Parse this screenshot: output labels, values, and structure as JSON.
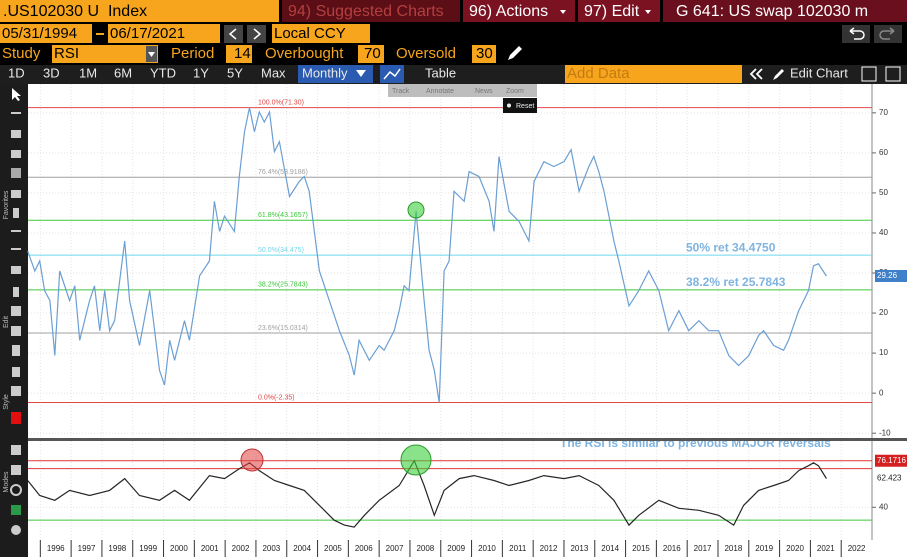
{
  "header": {
    "ticker": ".US102030 U  Index",
    "menu": [
      "94) Suggested Charts",
      "96) Actions",
      "97) Edit"
    ],
    "page": "G 641: US swap 102030 m"
  },
  "controls": {
    "start_date": "05/31/1994",
    "end_date": "06/17/2021",
    "currency": "Local CCY",
    "study_label": "Study",
    "study": "RSI",
    "period_label": "Period",
    "period": 14,
    "overbought_label": "Overbought",
    "overbought": 70,
    "oversold_label": "Oversold",
    "oversold": 30
  },
  "toolbar": {
    "ranges": [
      "1D",
      "3D",
      "1M",
      "6M",
      "YTD",
      "1Y",
      "5Y",
      "Max"
    ],
    "frequency": "Monthly",
    "table": "Table",
    "add_data": "Add Data",
    "edit_chart": "Edit Chart"
  },
  "chart_tools": [
    "Track",
    "Annotate",
    "News",
    "Zoom",
    "Reset"
  ],
  "sidebar": [
    "Favorites",
    "Edit",
    "Style",
    "Modes"
  ],
  "chart_data": [
    {
      "type": "line",
      "color": "#6b9fd3",
      "x": [
        1995.59,
        1995.82,
        1995.98,
        1996.14,
        1996.31,
        1996.47,
        1996.63,
        1996.95,
        1997.12,
        1997.28,
        1997.6,
        1997.76,
        1997.93,
        1998.09,
        1998.25,
        1998.41,
        1998.74,
        1998.9,
        1999.22,
        1999.55,
        1999.87,
        2000.03,
        2000.2,
        2000.36,
        2000.68,
        2000.84,
        2001.17,
        2001.49,
        2001.65,
        2001.82,
        2001.98,
        2002.3,
        2002.46,
        2002.63,
        2002.79,
        2002.95,
        2003.11,
        2003.27,
        2003.44,
        2003.6,
        2003.76,
        2004.09,
        2004.41,
        2004.57,
        2004.73,
        2005.06,
        2005.38,
        2005.71,
        2006.03,
        2006.19,
        2006.35,
        2006.68,
        2007.0,
        2007.16,
        2007.49,
        2007.65,
        2007.81,
        2007.97,
        2008.2,
        2008.46,
        2008.62,
        2008.79,
        2008.95,
        2009.11,
        2009.27,
        2009.43,
        2009.76,
        2009.92,
        2010.24,
        2010.57,
        2010.73,
        2010.89,
        2011.22,
        2011.54,
        2011.86,
        2012.03,
        2012.35,
        2012.67,
        2013.0,
        2013.23,
        2013.49,
        2013.81,
        2013.97,
        2014.13,
        2014.3,
        2014.62,
        2014.78,
        2015.11,
        2015.43,
        2015.75,
        2016.08,
        2016.4,
        2016.73,
        2017.05,
        2017.38,
        2017.7,
        2018.02,
        2018.35,
        2018.67,
        2019.0,
        2019.32,
        2019.48,
        2019.81,
        2020.13,
        2020.29,
        2020.62,
        2020.94,
        2021.1,
        2021.26,
        2021.52
      ],
      "values": [
        35.5,
        30.5,
        33.0,
        25.6,
        23.1,
        9.4,
        30.5,
        23.1,
        26.8,
        13.2,
        23.1,
        26.8,
        15.6,
        25.6,
        15.6,
        18.1,
        38.0,
        23.1,
        11.9,
        25.6,
        5.7,
        2.0,
        13.2,
        8.2,
        18.1,
        13.2,
        29.3,
        33.0,
        47.9,
        40.4,
        44.2,
        40.4,
        54.1,
        65.3,
        71.3,
        65.3,
        70.2,
        67.7,
        70.2,
        60.3,
        62.8,
        49.1,
        52.9,
        54.1,
        50.4,
        30.5,
        23.1,
        15.6,
        9.4,
        4.5,
        13.2,
        8.2,
        11.9,
        10.7,
        15.6,
        20.6,
        26.8,
        25.6,
        45.4,
        23.1,
        10.7,
        5.7,
        -2.35,
        30.5,
        33.0,
        50.4,
        47.9,
        55.3,
        54.1,
        47.9,
        40.4,
        59.1,
        45.4,
        42.9,
        38.0,
        52.9,
        57.8,
        56.6,
        57.8,
        60.8,
        50.4,
        56.6,
        59.1,
        55.3,
        50.4,
        38.0,
        33.0,
        21.8,
        25.6,
        30.5,
        25.6,
        15.6,
        20.6,
        15.6,
        18.1,
        15.6,
        15.6,
        9.4,
        6.9,
        9.4,
        14.4,
        15.6,
        11.9,
        10.7,
        13.2,
        20.6,
        25.6,
        31.8,
        32.3,
        29.26
      ],
      "xlim": [
        1995.6,
        2023.0
      ],
      "ylim": [
        -11.2,
        77.2
      ],
      "yticks": [
        -10,
        0,
        10,
        20,
        30,
        40,
        50,
        60,
        70
      ],
      "grid": true,
      "levels": [
        {
          "label": "100.0%(71.30)",
          "value": 71.3,
          "color": "#e04848"
        },
        {
          "label": "76.4%(53.9186)",
          "value": 53.9186,
          "color": "#a0a0a0"
        },
        {
          "label": "61.8%(43.1657)",
          "value": 43.1657,
          "color": "#3cc83c"
        },
        {
          "label": "50.0%(34.475)",
          "value": 34.475,
          "color": "#6fd8ec"
        },
        {
          "label": "38.2%(25.7843)",
          "value": 25.7843,
          "color": "#3cc83c"
        },
        {
          "label": "23.6%(15.0314)",
          "value": 15.0314,
          "color": "#a0a0a0"
        },
        {
          "label": "0.0%(-2.35)",
          "value": -2.35,
          "color": "#e04848"
        }
      ],
      "annotations": [
        {
          "text": "50% ret 34.4750",
          "value": 34.475
        },
        {
          "text": "38.2% ret 25.7843",
          "value": 25.7843
        }
      ],
      "tags": [
        {
          "value": 29.26,
          "color": "#3d7fc9",
          "text_color": "#ffffff"
        }
      ]
    },
    {
      "type": "line",
      "color": "#262626",
      "x": [
        1995.59,
        1995.98,
        1996.47,
        1996.95,
        1997.6,
        1998.25,
        1998.74,
        1999.22,
        1999.87,
        2000.36,
        2000.84,
        2001.49,
        2001.98,
        2002.46,
        2002.79,
        2003.11,
        2003.6,
        2004.09,
        2004.57,
        2005.06,
        2005.54,
        2005.87,
        2006.19,
        2006.52,
        2007.0,
        2007.65,
        2008.14,
        2008.46,
        2008.79,
        2009.11,
        2009.6,
        2010.08,
        2010.73,
        2011.22,
        2011.86,
        2012.35,
        2013.0,
        2013.49,
        2014.13,
        2014.62,
        2015.11,
        2015.43,
        2016.08,
        2016.73,
        2017.38,
        2018.02,
        2018.51,
        2018.83,
        2019.32,
        2019.81,
        2020.29,
        2020.62,
        2020.94,
        2021.1,
        2021.26,
        2021.52
      ],
      "values": [
        60.8,
        49.2,
        45.4,
        53.1,
        49.2,
        53.1,
        62.3,
        49.2,
        45.4,
        53.1,
        45.4,
        64.6,
        62.3,
        70.0,
        74.6,
        68.5,
        60.8,
        56.9,
        53.1,
        41.5,
        30.0,
        26.2,
        24.6,
        33.8,
        45.4,
        56.9,
        76.2,
        56.9,
        33.8,
        53.1,
        62.3,
        64.6,
        60.8,
        56.9,
        60.8,
        64.6,
        62.3,
        64.6,
        56.9,
        45.4,
        26.2,
        33.8,
        45.4,
        39.2,
        37.7,
        33.8,
        26.2,
        41.5,
        53.1,
        56.9,
        60.8,
        68.5,
        72.3,
        74.6,
        72.3,
        62.4
      ],
      "xlim": [
        1995.6,
        2023.0
      ],
      "ylim": [
        14.6,
        91.5
      ],
      "yticks": [
        40
      ],
      "grid": true,
      "xticks": [
        {
          "value": 1996.5,
          "label": "1996"
        },
        {
          "value": 1997.5,
          "label": "1997"
        },
        {
          "value": 1998.5,
          "label": "1998"
        },
        {
          "value": 1999.5,
          "label": "1999"
        },
        {
          "value": 2000.5,
          "label": "2000"
        },
        {
          "value": 2001.5,
          "label": "2001"
        },
        {
          "value": 2002.5,
          "label": "2002"
        },
        {
          "value": 2003.5,
          "label": "2003"
        },
        {
          "value": 2004.5,
          "label": "2004"
        },
        {
          "value": 2005.5,
          "label": "2005"
        },
        {
          "value": 2006.5,
          "label": "2006"
        },
        {
          "value": 2007.5,
          "label": "2007"
        },
        {
          "value": 2008.5,
          "label": "2008"
        },
        {
          "value": 2009.5,
          "label": "2009"
        },
        {
          "value": 2010.5,
          "label": "2010"
        },
        {
          "value": 2011.5,
          "label": "2011"
        },
        {
          "value": 2012.5,
          "label": "2012"
        },
        {
          "value": 2013.5,
          "label": "2013"
        },
        {
          "value": 2014.5,
          "label": "2014"
        },
        {
          "value": 2015.5,
          "label": "2015"
        },
        {
          "value": 2016.5,
          "label": "2016"
        },
        {
          "value": 2017.5,
          "label": "2017"
        },
        {
          "value": 2018.5,
          "label": "2018"
        },
        {
          "value": 2019.5,
          "label": "2019"
        },
        {
          "value": 2020.5,
          "label": "2020"
        },
        {
          "value": 2021.5,
          "label": "2021"
        },
        {
          "value": 2022.5,
          "label": "2022"
        }
      ],
      "levels": [
        {
          "value": 76.1716,
          "color": "#e03434"
        },
        {
          "value": 70,
          "color": "#e03434"
        },
        {
          "value": 30,
          "color": "#3cc83c"
        }
      ],
      "annotations": [
        {
          "text": "The RSI is similar to previous MAJOR reversals",
          "value": 84
        }
      ],
      "tags": [
        {
          "value": 76.1716,
          "color": "#d42020",
          "text_color": "#ffffff"
        },
        {
          "value": 62.423,
          "color": "#ffffff",
          "text_color": "#222222"
        }
      ]
    }
  ]
}
